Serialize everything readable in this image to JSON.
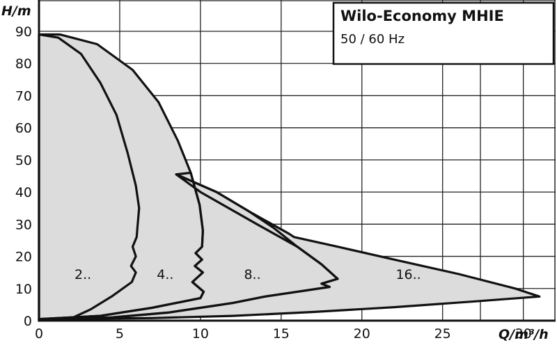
{
  "chart_data": {
    "type": "area",
    "title": "Wilo-Economy MHIE",
    "subtitle": "50 / 60 Hz",
    "xlabel": "Q/m³/h",
    "ylabel": "H/m",
    "xlim": [
      0,
      32
    ],
    "ylim": [
      0,
      90
    ],
    "x_ticks": [
      0,
      5,
      10,
      15,
      20,
      25,
      30
    ],
    "y_ticks": [
      0,
      10,
      20,
      30,
      40,
      50,
      60,
      70,
      80,
      90
    ],
    "grid": true,
    "fill_color": "#dcdcdc",
    "line_color": "#111111",
    "series": [
      {
        "name": "2..",
        "label_at": [
          2.2,
          14.5
        ],
        "points": [
          [
            0,
            0
          ],
          [
            0,
            89
          ],
          [
            1.2,
            88
          ],
          [
            2.6,
            83
          ],
          [
            3.8,
            74
          ],
          [
            4.8,
            64
          ],
          [
            5.5,
            52
          ],
          [
            6.0,
            42
          ],
          [
            6.2,
            35
          ],
          [
            6.1,
            29
          ],
          [
            6.05,
            26
          ],
          [
            5.8,
            23
          ],
          [
            6.0,
            20
          ],
          [
            5.7,
            17
          ],
          [
            6.0,
            15
          ],
          [
            5.75,
            12
          ],
          [
            4.5,
            7.5
          ],
          [
            3.2,
            3.5
          ],
          [
            1.9,
            0.5
          ],
          [
            0,
            0
          ]
        ]
      },
      {
        "name": "4..",
        "label_at": [
          7.3,
          14.5
        ],
        "points": [
          [
            0,
            0
          ],
          [
            0,
            89
          ],
          [
            1.3,
            89
          ],
          [
            3.6,
            86
          ],
          [
            5.8,
            78
          ],
          [
            7.4,
            68
          ],
          [
            8.6,
            56
          ],
          [
            9.4,
            46
          ],
          [
            9.95,
            36
          ],
          [
            10.15,
            28
          ],
          [
            10.1,
            23
          ],
          [
            9.7,
            21
          ],
          [
            10.1,
            19
          ],
          [
            9.65,
            17
          ],
          [
            10.15,
            15
          ],
          [
            9.5,
            12
          ],
          [
            10.2,
            9
          ],
          [
            10.0,
            7
          ],
          [
            7.0,
            4
          ],
          [
            3.8,
            1.5
          ],
          [
            0,
            0.5
          ],
          [
            0,
            0
          ]
        ]
      },
      {
        "name": "8..",
        "label_at": [
          12.7,
          14.5
        ],
        "points": [
          [
            0,
            0
          ],
          [
            0,
            0.5
          ],
          [
            4.5,
            1.0
          ],
          [
            8.0,
            2.5
          ],
          [
            10.0,
            4.0
          ],
          [
            12.0,
            5.5
          ],
          [
            14.0,
            7.5
          ],
          [
            16.0,
            9.0
          ],
          [
            18.0,
            10.5
          ],
          [
            17.5,
            11.5
          ],
          [
            18.5,
            13.0
          ],
          [
            17.5,
            17.5
          ],
          [
            16.0,
            23.0
          ],
          [
            14.5,
            29.0
          ],
          [
            13.0,
            34.0
          ],
          [
            11.0,
            40.0
          ],
          [
            8.5,
            45.5
          ],
          [
            9.4,
            46
          ],
          [
            9.95,
            36
          ],
          [
            10.15,
            28
          ],
          [
            10.1,
            23
          ],
          [
            9.7,
            21
          ],
          [
            10.1,
            19
          ],
          [
            9.65,
            17
          ],
          [
            10.15,
            15
          ],
          [
            9.5,
            12
          ],
          [
            10.2,
            9
          ],
          [
            10.0,
            7
          ],
          [
            7.0,
            4
          ],
          [
            3.8,
            1.5
          ],
          [
            0,
            0.5
          ],
          [
            0,
            0
          ]
        ]
      },
      {
        "name": "16..",
        "label_at": [
          22.1,
          14.5
        ],
        "points": [
          [
            0,
            0
          ],
          [
            0,
            0.5
          ],
          [
            7.0,
            0.8
          ],
          [
            12.0,
            1.5
          ],
          [
            17.0,
            2.7
          ],
          [
            22.0,
            4.2
          ],
          [
            27.0,
            6.0
          ],
          [
            31.0,
            7.5
          ],
          [
            29.5,
            10.0
          ],
          [
            26.0,
            14.5
          ],
          [
            22.0,
            19.0
          ],
          [
            18.5,
            23.0
          ],
          [
            15.8,
            26.0
          ],
          [
            15.5,
            27.0
          ],
          [
            13.0,
            34.0
          ],
          [
            11.0,
            40.0
          ],
          [
            8.5,
            45.5
          ],
          [
            10.0,
            40.0
          ],
          [
            13.5,
            30.0
          ],
          [
            16.0,
            23.0
          ],
          [
            17.5,
            17.5
          ],
          [
            18.5,
            13.0
          ],
          [
            17.5,
            11.5
          ],
          [
            18.0,
            10.5
          ],
          [
            16.0,
            9.0
          ],
          [
            14.0,
            7.5
          ],
          [
            12.0,
            5.5
          ],
          [
            10.0,
            4.0
          ],
          [
            8.0,
            2.5
          ],
          [
            4.5,
            1.0
          ],
          [
            0,
            0.5
          ],
          [
            0,
            0
          ]
        ]
      }
    ]
  }
}
